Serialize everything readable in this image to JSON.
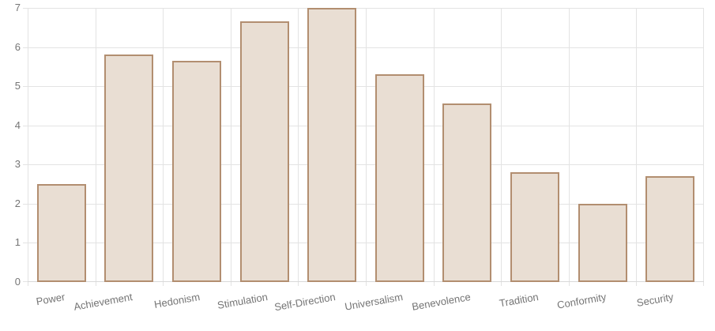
{
  "chart_data": {
    "type": "bar",
    "title": "",
    "xlabel": "",
    "ylabel": "",
    "categories": [
      "Power",
      "Achievement",
      "Hedonism",
      "Stimulation",
      "Self-Direction",
      "Universalism",
      "Benevolence",
      "Tradition",
      "Conformity",
      "Security"
    ],
    "values": [
      2.5,
      5.8,
      5.65,
      6.65,
      7.0,
      5.3,
      4.55,
      2.8,
      2.0,
      2.7
    ],
    "ylim": [
      0,
      7
    ],
    "yticks": [
      0,
      1,
      2,
      3,
      4,
      5,
      6,
      7
    ],
    "grid": true,
    "legend": false,
    "x_tick_angle_deg": -10,
    "colors": {
      "background": "#ffffff",
      "bar_fill": "#e9ded3",
      "bar_border": "#b28e70",
      "gridline": "#e3e3e3",
      "axis_line": "#d9d9d9",
      "tick_label": "#757575"
    }
  }
}
